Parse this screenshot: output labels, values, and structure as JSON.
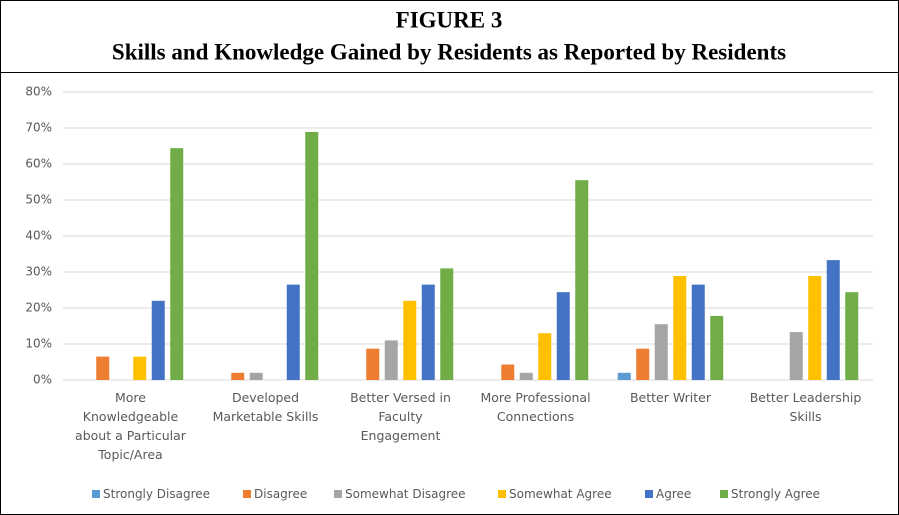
{
  "chart_data": {
    "type": "bar",
    "title": "FIGURE 3",
    "subtitle": "Skills and Knowledge Gained by Residents as Reported by Residents",
    "categories": [
      "More Knowledgeable about a Particular Topic/Area",
      "Developed Marketable Skills",
      "Better Versed in Faculty Engagement",
      "More Professional Connections",
      "Better Writer",
      "Better Leadership Skills"
    ],
    "series": [
      {
        "name": "Strongly Disagree",
        "color": "#5b9bd5",
        "values": [
          0,
          0,
          0,
          0,
          2,
          0
        ]
      },
      {
        "name": "Disagree",
        "color": "#ed7d31",
        "values": [
          6.5,
          2,
          8.7,
          4.3,
          8.7,
          0
        ]
      },
      {
        "name": "Somewhat Disagree",
        "color": "#a5a5a5",
        "values": [
          0,
          2,
          11,
          2,
          15.5,
          13.3
        ]
      },
      {
        "name": "Somewhat Agree",
        "color": "#ffc000",
        "values": [
          6.5,
          0,
          22,
          13,
          28.9,
          28.9
        ]
      },
      {
        "name": "Agree",
        "color": "#4472c4",
        "values": [
          22,
          26.5,
          26.5,
          24.4,
          26.5,
          33.3
        ]
      },
      {
        "name": "Strongly Agree",
        "color": "#70ad47",
        "values": [
          64.4,
          68.9,
          31,
          55.5,
          17.8,
          24.4
        ]
      }
    ],
    "ylim": [
      0,
      80
    ],
    "yticks": [
      {
        "value": 0,
        "label": "0%"
      },
      {
        "value": 10,
        "label": "10%"
      },
      {
        "value": 20,
        "label": "20%"
      },
      {
        "value": 30,
        "label": "30%"
      },
      {
        "value": 40,
        "label": "40%"
      },
      {
        "value": 50,
        "label": "50%"
      },
      {
        "value": 60,
        "label": "60%"
      },
      {
        "value": 70,
        "label": "70%"
      },
      {
        "value": 80,
        "label": "80%"
      }
    ],
    "grid": true,
    "legend": "bottom"
  }
}
